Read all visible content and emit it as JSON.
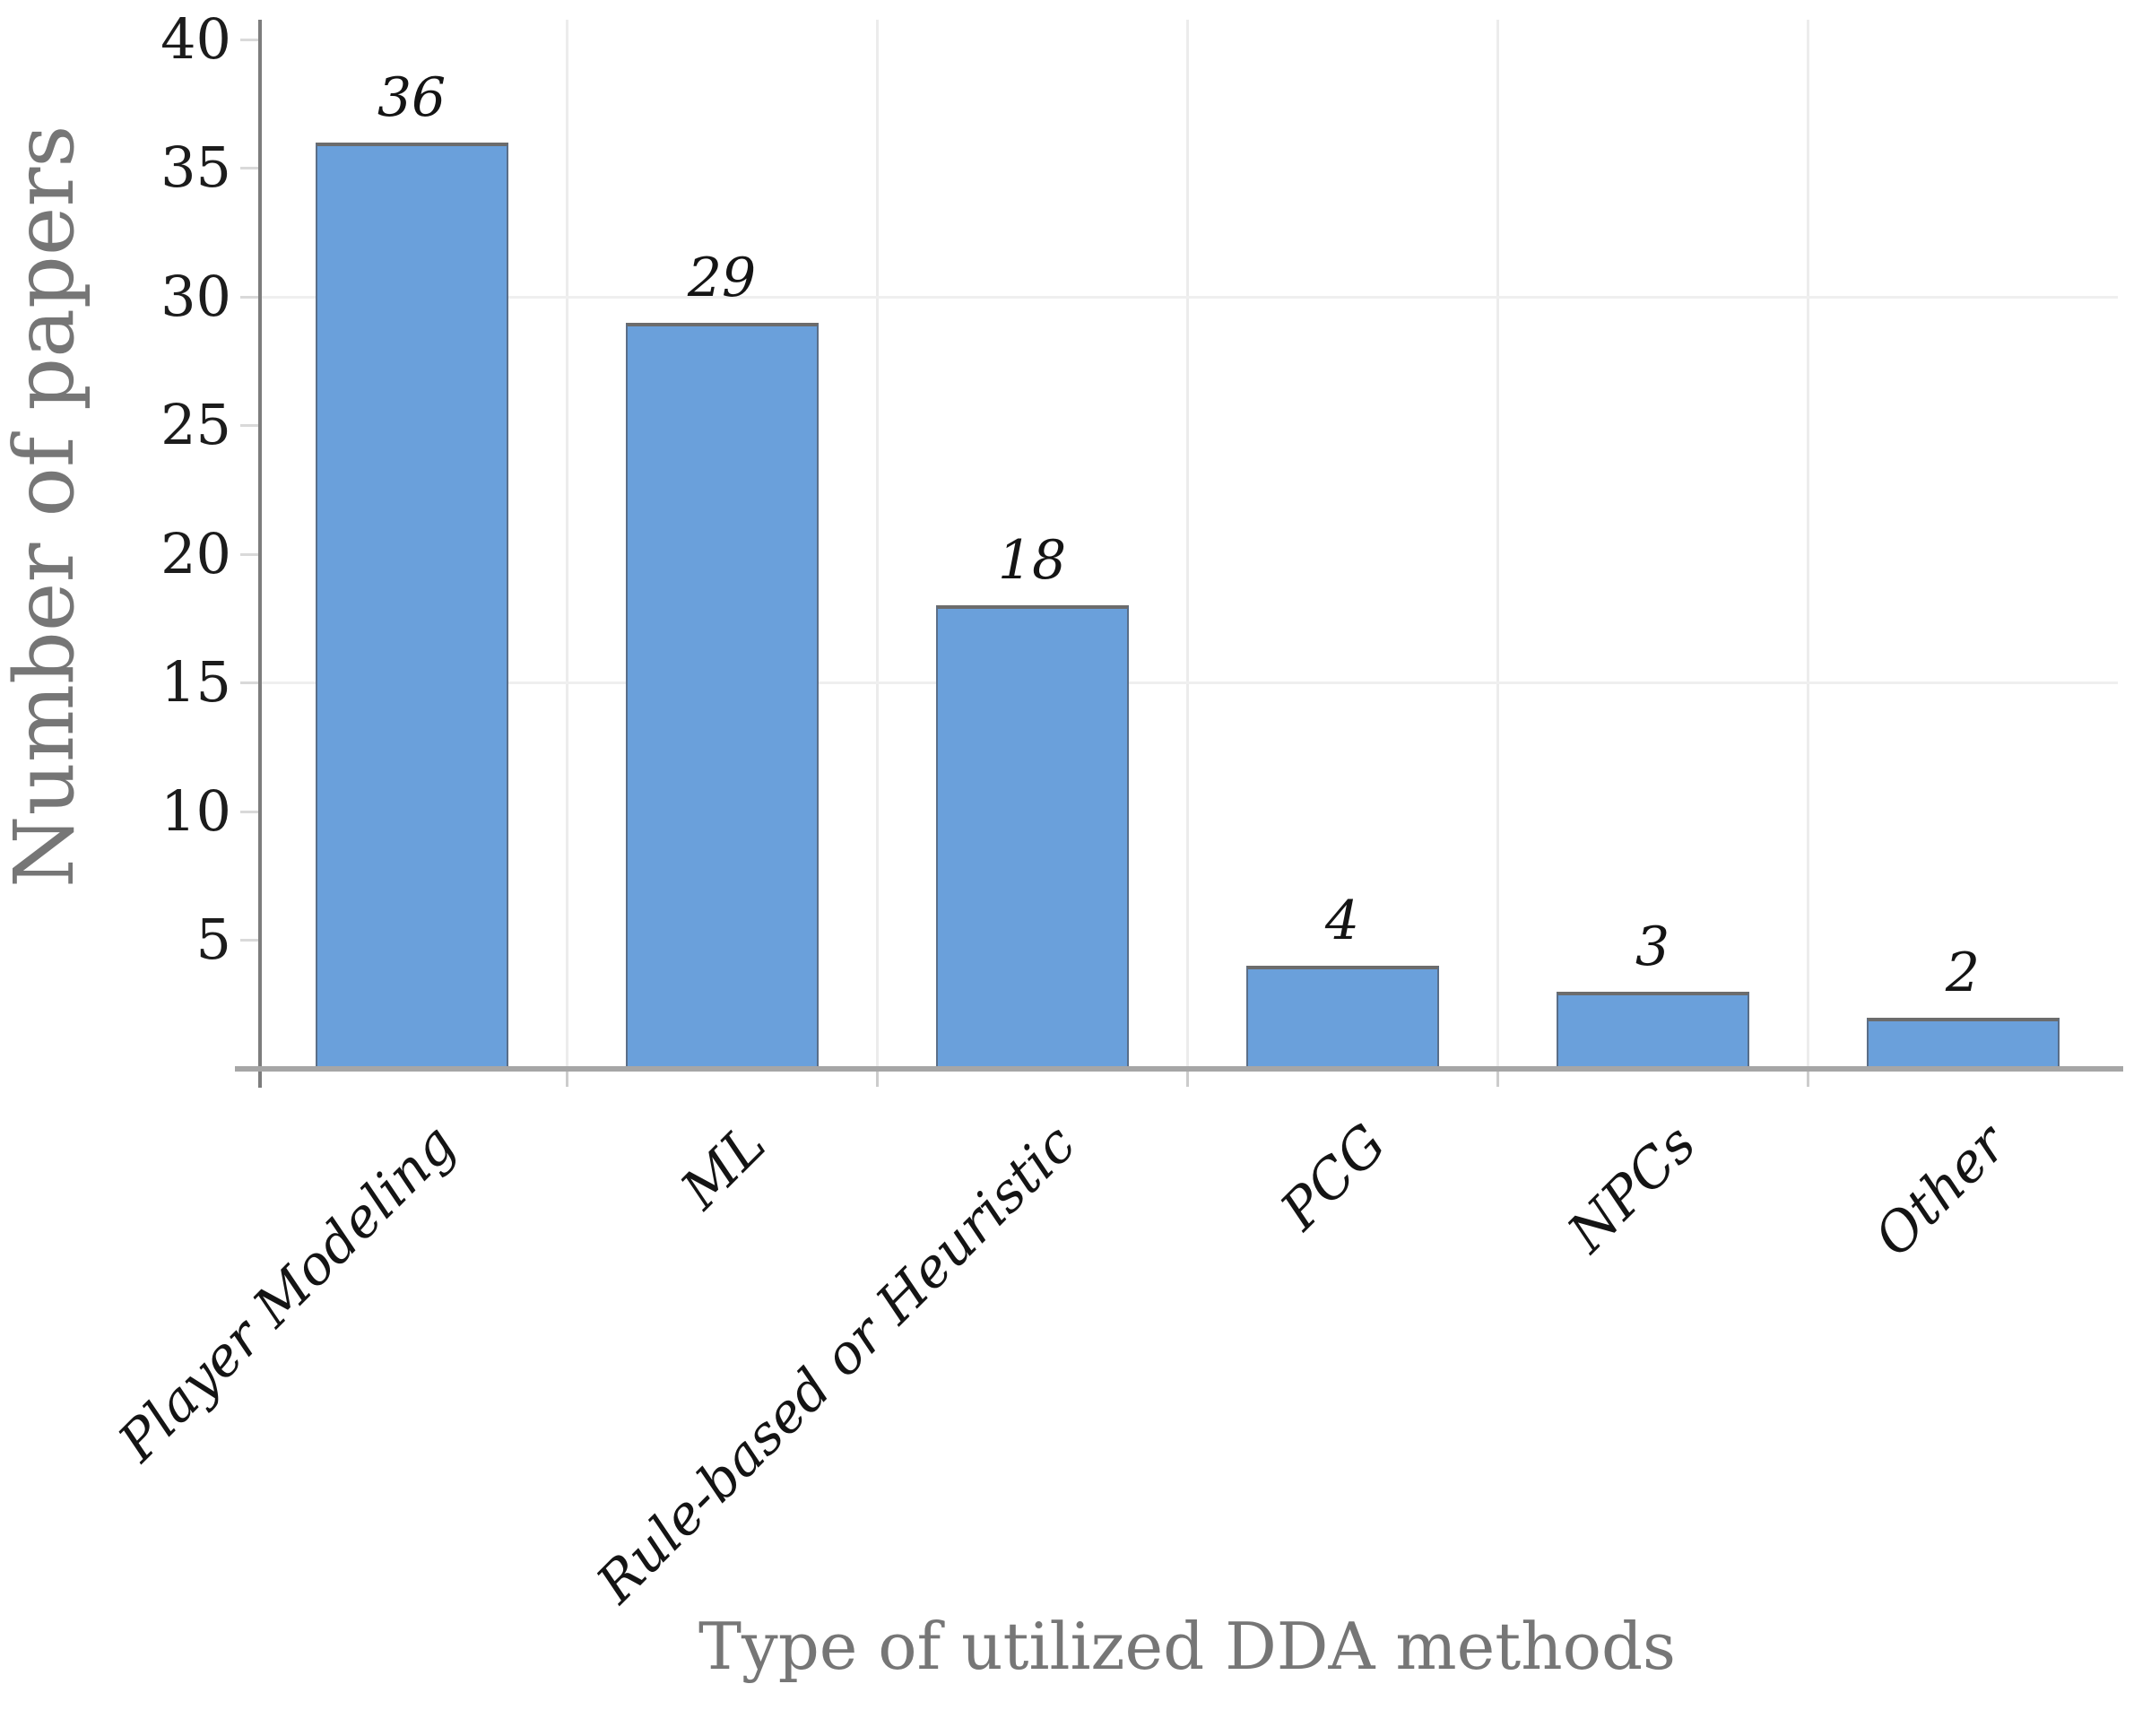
{
  "chart_data": {
    "type": "bar",
    "title": "",
    "categories": [
      "Player Modeling",
      "ML",
      "Rule-based or Heuristic",
      "PCG",
      "NPCs",
      "Other"
    ],
    "values": [
      36,
      29,
      18,
      4,
      3,
      2
    ],
    "xlabel": "Type of utilized DDA methods",
    "ylabel": "Number of papers",
    "ylim": [
      0,
      40
    ],
    "yticks": [
      5,
      10,
      15,
      20,
      25,
      30,
      35,
      40
    ],
    "horizontal_gridlines_at": [
      15,
      30
    ],
    "grid_vertical": "category-boundaries",
    "legend": "none",
    "bar_color": "#6aa0db",
    "bar_border_color": "#6c6c6c",
    "axis_line_color": "#7d7d7d",
    "baseline_color": "#a6a6a6",
    "gridline_color": "#ececec",
    "tick_color": "#d9d9d9",
    "label_color": "#141414",
    "axis_title_color": "#767676"
  }
}
